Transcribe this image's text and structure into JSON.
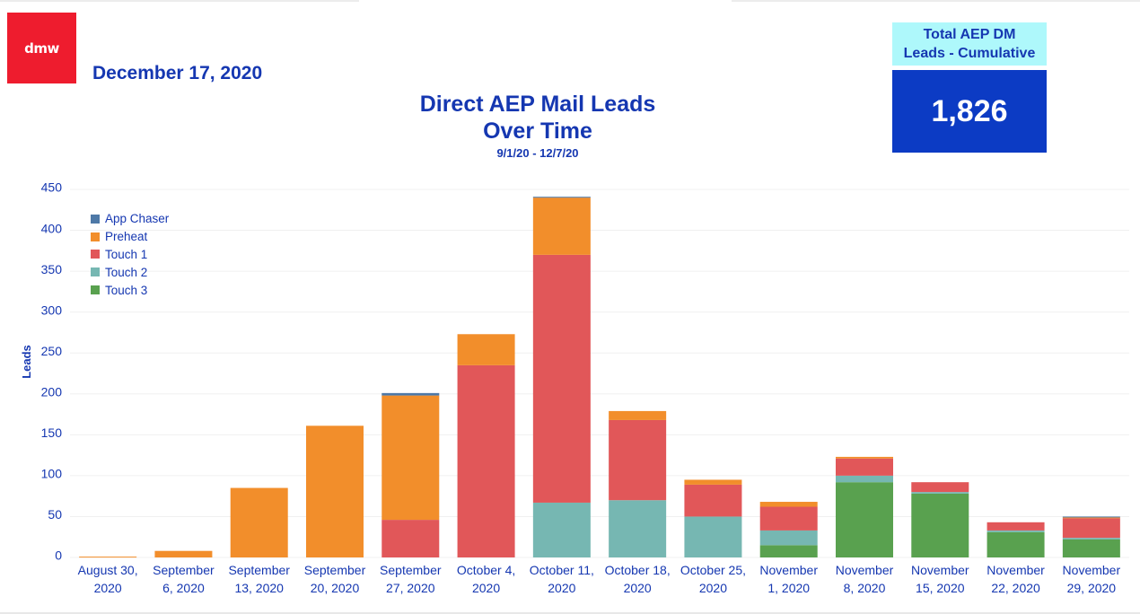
{
  "logo_text": "dmw",
  "date": "December 17, 2020",
  "title_line1": "Direct AEP Mail Leads",
  "title_line2": "Over Time",
  "subtitle": "9/1/20 - 12/7/20",
  "kpi": {
    "label_line1": "Total AEP DM",
    "label_line2": "Leads - Cumulative",
    "value": "1,826"
  },
  "colors": {
    "brand_red": "#ee1c2e",
    "text_blue": "#1537b1",
    "kpi_bg": "#0c3bc4",
    "kpi_head_bg": "#aef8fb"
  },
  "chart_data": {
    "type": "bar",
    "stacked": true,
    "title": "Direct AEP Mail Leads Over Time",
    "subtitle": "9/1/20 - 12/7/20",
    "xlabel": "",
    "ylabel": "Leads",
    "ylim": [
      0,
      450
    ],
    "yticks": [
      0,
      50,
      100,
      150,
      200,
      250,
      300,
      350,
      400,
      450
    ],
    "grid": true,
    "legend_position": "top-left",
    "categories": [
      [
        "August 30,",
        "2020"
      ],
      [
        "September",
        "6, 2020"
      ],
      [
        "September",
        "13, 2020"
      ],
      [
        "September",
        "20, 2020"
      ],
      [
        "September",
        "27, 2020"
      ],
      [
        "October 4,",
        "2020"
      ],
      [
        "October 11,",
        "2020"
      ],
      [
        "October 18,",
        "2020"
      ],
      [
        "October 25,",
        "2020"
      ],
      [
        "November",
        "1, 2020"
      ],
      [
        "November",
        "8, 2020"
      ],
      [
        "November",
        "15, 2020"
      ],
      [
        "November",
        "22, 2020"
      ],
      [
        "November",
        "29, 2020"
      ]
    ],
    "series": [
      {
        "name": "Touch 3",
        "color": "#59a14f",
        "values": [
          0,
          0,
          0,
          0,
          0,
          0,
          0,
          0,
          0,
          15,
          92,
          78,
          31,
          22
        ]
      },
      {
        "name": "Touch 2",
        "color": "#76b7b2",
        "values": [
          0,
          0,
          0,
          0,
          0,
          0,
          67,
          70,
          50,
          18,
          8,
          2,
          2,
          2
        ]
      },
      {
        "name": "Touch 1",
        "color": "#e15759",
        "values": [
          0,
          0,
          0,
          0,
          46,
          235,
          303,
          98,
          39,
          29,
          21,
          12,
          10,
          24
        ]
      },
      {
        "name": "Preheat",
        "color": "#f28e2b",
        "values": [
          1,
          8,
          85,
          161,
          152,
          38,
          70,
          11,
          6,
          6,
          2,
          0,
          0,
          1
        ]
      },
      {
        "name": "App Chaser",
        "color": "#4e79a7",
        "values": [
          0,
          0,
          0,
          0,
          3,
          0,
          1,
          0,
          0,
          0,
          0,
          0,
          0,
          1
        ]
      }
    ],
    "legend_order": [
      "App Chaser",
      "Preheat",
      "Touch 1",
      "Touch 2",
      "Touch 3"
    ]
  }
}
